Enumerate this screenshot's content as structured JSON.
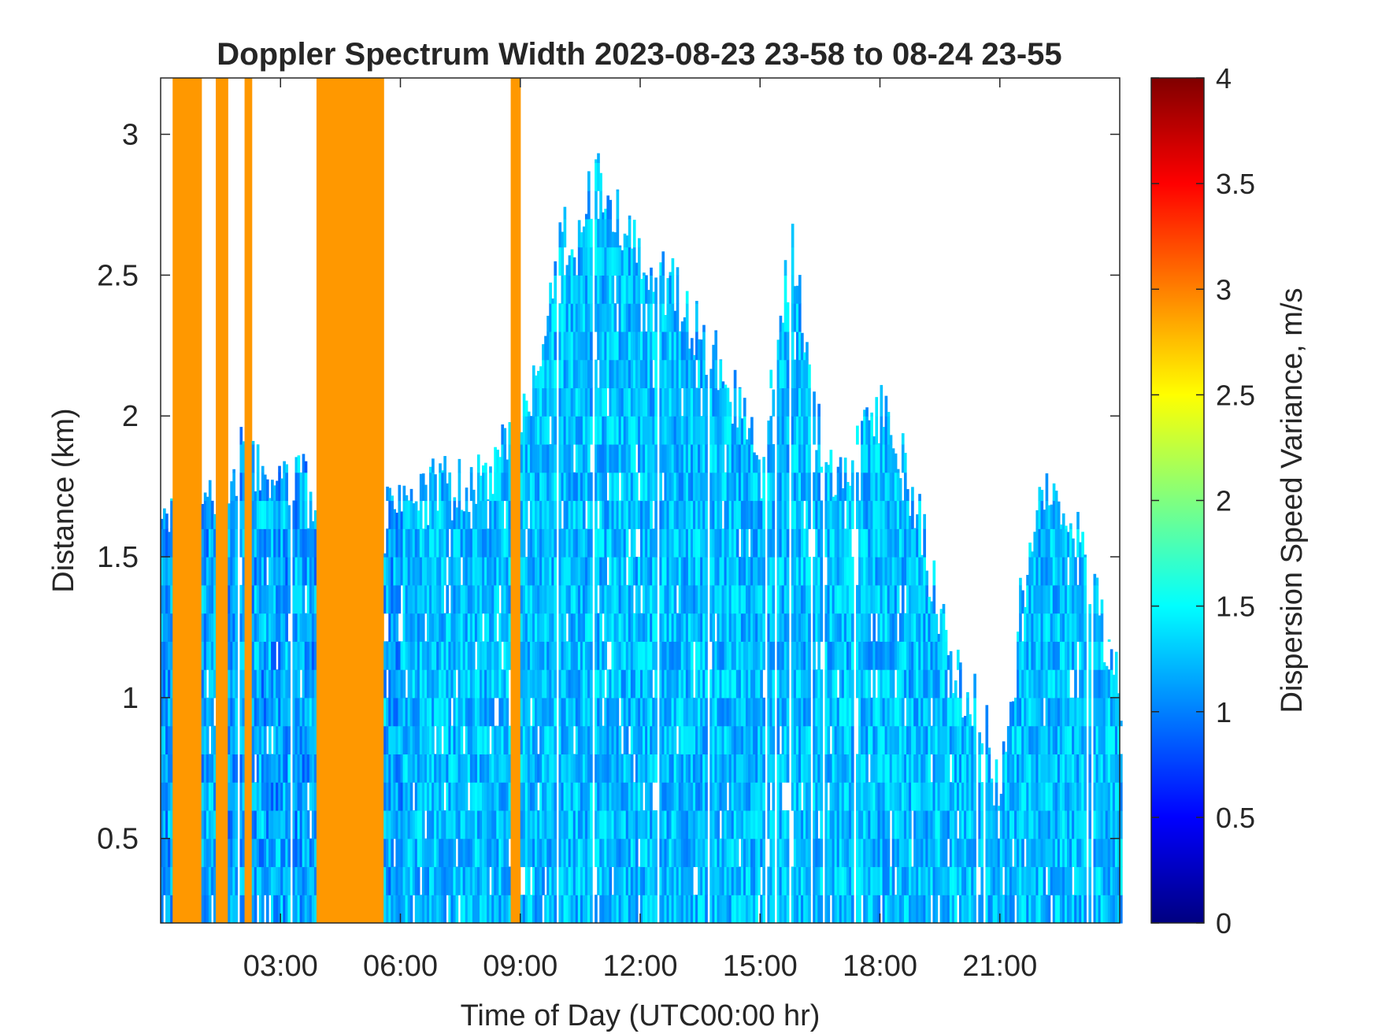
{
  "chart_data": {
    "type": "heatmap",
    "title": "Doppler Spectrum Width 2023-08-23 23-58 to 08-24 23-55",
    "xlabel": "Time of Day (UTC00:00 hr)",
    "ylabel": "Distance (km)",
    "colorbar_label": "Dispersion Speed Variance, m/s",
    "xlim": [
      0,
      24
    ],
    "ylim": [
      0.2,
      3.2
    ],
    "clim": [
      0,
      4
    ],
    "colormap": "jet",
    "x_tick_labels": [
      "03:00",
      "06:00",
      "09:00",
      "12:00",
      "15:00",
      "18:00",
      "21:00"
    ],
    "x_ticks_hours": [
      3,
      6,
      9,
      12,
      15,
      18,
      21
    ],
    "y_ticks": [
      0.5,
      1,
      1.5,
      2,
      2.5,
      3
    ],
    "y_tick_labels": [
      "0.5",
      "1",
      "1.5",
      "2",
      "2.5",
      "3"
    ],
    "colorbar_ticks": [
      0,
      0.5,
      1,
      1.5,
      2,
      2.5,
      3,
      3.5,
      4
    ],
    "colorbar_tick_labels": [
      "0",
      "0.5",
      "1",
      "1.5",
      "2",
      "2.5",
      "3",
      "3.5",
      "4"
    ],
    "grid": false,
    "colors": {
      "saturated_band": "#ff9800",
      "background": "#ffffff",
      "axis": "#262626"
    },
    "orange_bands_hours": [
      [
        0.3,
        1.0
      ],
      [
        1.4,
        1.7
      ],
      [
        2.1,
        2.3
      ],
      [
        3.9,
        5.6
      ],
      [
        8.75,
        9.0
      ]
    ],
    "echo_top_km": [
      [
        0,
        1.7
      ],
      [
        0.5,
        1.6
      ],
      [
        1,
        1.65
      ],
      [
        1.5,
        1.65
      ],
      [
        2,
        1.85
      ],
      [
        2.5,
        1.85
      ],
      [
        3,
        1.8
      ],
      [
        3.5,
        1.8
      ],
      [
        4,
        1.5
      ],
      [
        5,
        1.5
      ],
      [
        6,
        1.7
      ],
      [
        7,
        1.75
      ],
      [
        8,
        1.75
      ],
      [
        9,
        1.95
      ],
      [
        10,
        2.6
      ],
      [
        11,
        2.85
      ],
      [
        12,
        2.6
      ],
      [
        13,
        2.4
      ],
      [
        14,
        2.2
      ],
      [
        15,
        1.8
      ],
      [
        15.8,
        2.6
      ],
      [
        16.5,
        1.9
      ],
      [
        17,
        1.8
      ],
      [
        18,
        2.0
      ],
      [
        18.5,
        1.9
      ],
      [
        19,
        1.6
      ],
      [
        19.5,
        1.3
      ],
      [
        20,
        1.05
      ],
      [
        20.5,
        1.0
      ],
      [
        21,
        0.6
      ],
      [
        21.5,
        1.3
      ],
      [
        22,
        1.8
      ],
      [
        23,
        1.6
      ],
      [
        24,
        1.0
      ]
    ]
  }
}
